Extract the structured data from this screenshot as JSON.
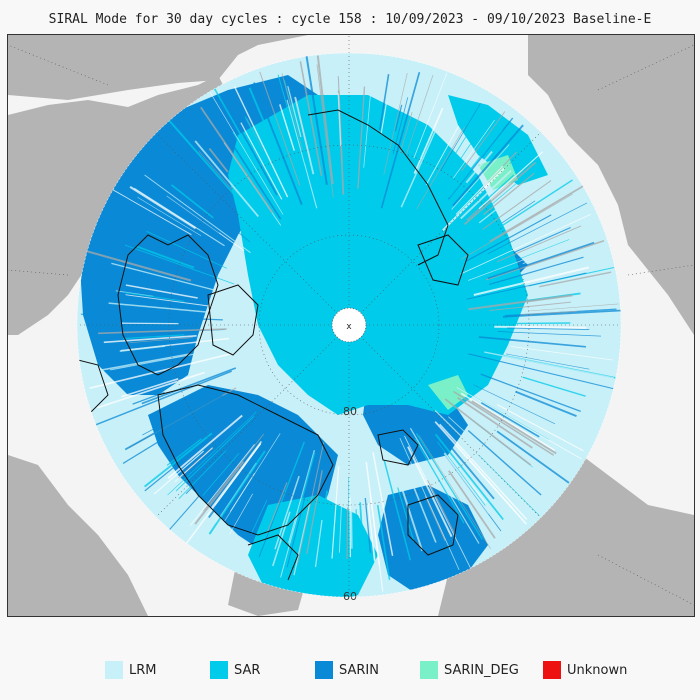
{
  "title": "SIRAL Mode for 30 day cycles : cycle 158 : 10/09/2023 - 09/10/2023 Baseline-E",
  "map": {
    "lat_labels": [
      "80",
      "60"
    ],
    "pole_marker": "x"
  },
  "colors": {
    "land": "#b4b4b4",
    "sea": "#f4f4f4",
    "LRM": "#c8f0f8",
    "SAR": "#00cbea",
    "SARIN": "#0a8ad6",
    "SARIN_DEG": "#7af0c8",
    "Unknown": "#ee1111",
    "gap": "#a8a8a8"
  },
  "legend": [
    {
      "label": "LRM",
      "color": "#c8f0f8"
    },
    {
      "label": "SAR",
      "color": "#00cbea"
    },
    {
      "label": "SARIN",
      "color": "#0a8ad6"
    },
    {
      "label": "SARIN_DEG",
      "color": "#7af0c8"
    },
    {
      "label": "Unknown",
      "color": "#ee1111"
    }
  ]
}
